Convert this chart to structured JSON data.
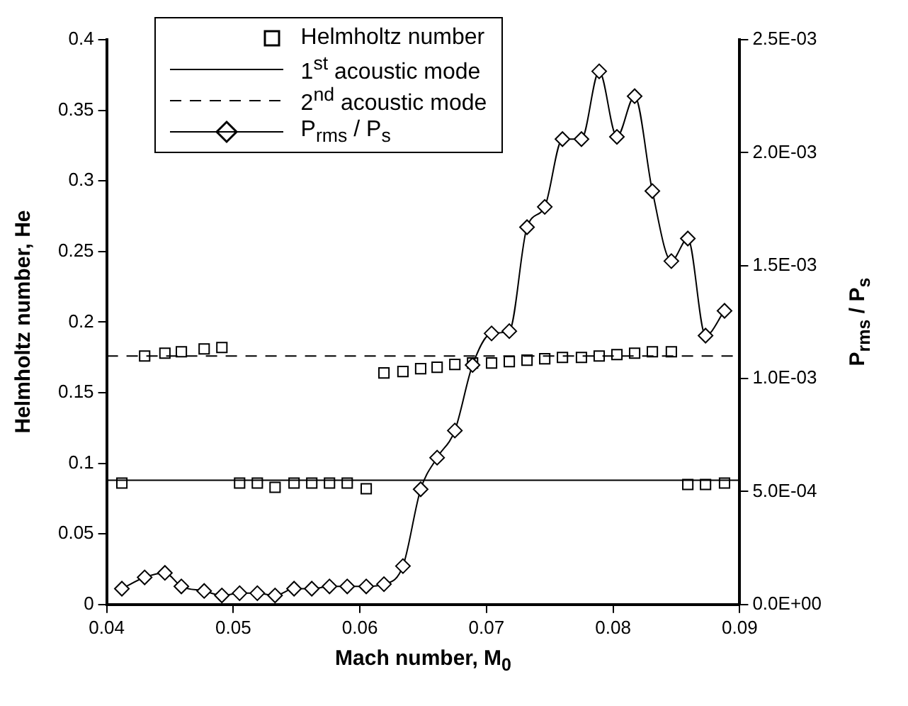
{
  "chart_data": {
    "type": "scatter",
    "xlabel": "Mach number, M$_{0}$",
    "ylabel": "Helmholtz number, He",
    "y2label": "P$_{rms}$ / P$_{s}$",
    "xlim": [
      0.04,
      0.09
    ],
    "xticks": [
      0.04,
      0.05,
      0.06,
      0.07,
      0.08,
      0.09
    ],
    "ylim": [
      0,
      0.4
    ],
    "yticks": [
      0,
      0.05,
      0.1,
      0.15,
      0.2,
      0.25,
      0.3,
      0.35,
      0.4
    ],
    "y2lim": [
      0,
      0.0025
    ],
    "y2ticks": [
      {
        "value": 0,
        "label": "0.0E+00"
      },
      {
        "value": 0.0005,
        "label": "5.0E-04"
      },
      {
        "value": 0.001,
        "label": "1.0E-03"
      },
      {
        "value": 0.0015,
        "label": "1.5E-03"
      },
      {
        "value": 0.002,
        "label": "2.0E-03"
      },
      {
        "value": 0.0025,
        "label": "2.5E-03"
      }
    ],
    "grid": false,
    "legend": "top left",
    "series": [
      {
        "name": "Helmholtz number",
        "marker": "square",
        "color": "#000000",
        "x": [
          0.0412,
          0.043,
          0.0446,
          0.0459,
          0.0477,
          0.0491,
          0.0505,
          0.0519,
          0.0533,
          0.0548,
          0.0562,
          0.0576,
          0.059,
          0.0605,
          0.0619,
          0.0634,
          0.0648,
          0.0661,
          0.0675,
          0.0689,
          0.0704,
          0.0718,
          0.0732,
          0.0746,
          0.076,
          0.0775,
          0.0789,
          0.0803,
          0.0817,
          0.0831,
          0.0846,
          0.0859,
          0.0873,
          0.0888
        ],
        "values": [
          0.086,
          0.176,
          0.178,
          0.179,
          0.181,
          0.182,
          0.086,
          0.086,
          0.083,
          0.086,
          0.086,
          0.086,
          0.086,
          0.082,
          0.164,
          0.165,
          0.167,
          0.168,
          0.17,
          0.171,
          0.171,
          0.172,
          0.173,
          0.174,
          0.175,
          0.175,
          0.176,
          0.177,
          0.178,
          0.179,
          0.179,
          0.085,
          0.085,
          0.086
        ]
      },
      {
        "name": "P$_{rms}$ / P$_{s}$",
        "type": "line",
        "axis": "y2",
        "marker": "diamond",
        "line_style": "solid",
        "color": "#000000",
        "x": [
          0.0412,
          0.043,
          0.0446,
          0.0459,
          0.0477,
          0.0491,
          0.0505,
          0.0519,
          0.0533,
          0.0548,
          0.0562,
          0.0576,
          0.059,
          0.0605,
          0.0619,
          0.0634,
          0.0648,
          0.0661,
          0.0675,
          0.0689,
          0.0704,
          0.0718,
          0.0732,
          0.0746,
          0.076,
          0.0775,
          0.0789,
          0.0803,
          0.0817,
          0.0831,
          0.0846,
          0.0859,
          0.0873,
          0.0888
        ],
        "values": [
          7e-05,
          0.00012,
          0.00014,
          8e-05,
          6e-05,
          4e-05,
          5e-05,
          5e-05,
          4e-05,
          7e-05,
          7e-05,
          8e-05,
          8e-05,
          8e-05,
          9e-05,
          0.00017,
          0.00051,
          0.00065,
          0.00077,
          0.00106,
          0.0012,
          0.00121,
          0.00167,
          0.00176,
          0.00206,
          0.00206,
          0.00236,
          0.00207,
          0.00225,
          0.00183,
          0.00152,
          0.00162,
          0.00119,
          0.0013
        ]
      }
    ],
    "ref_lines": [
      {
        "axis": "y",
        "value": 0.088,
        "label": "1$^{st}$ acoustic mode",
        "color": "#000000",
        "line_style": "solid"
      },
      {
        "axis": "y",
        "value": 0.176,
        "label": "2$^{nd}$ acoustic mode",
        "color": "#000000",
        "line_style": "dashed"
      }
    ]
  }
}
